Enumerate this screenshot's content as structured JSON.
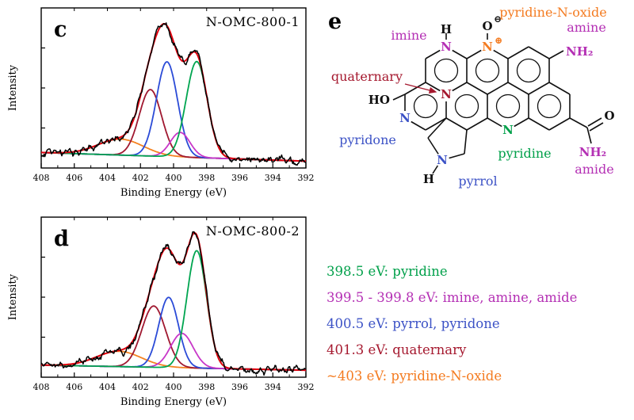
{
  "chart_data": [
    {
      "type": "line",
      "panel_letter": "c",
      "title": "N-OMC-800-1",
      "xlabel": "Binding Energy (eV)",
      "ylabel": "Intensity",
      "xlim": [
        408,
        392
      ],
      "x_ticks": [
        408,
        406,
        404,
        402,
        400,
        398,
        396,
        394,
        392
      ],
      "baseline": {
        "left": 0.1,
        "right": 0.03
      },
      "envelope": {
        "name": "fit-envelope",
        "color": "#e3000f"
      },
      "raw": {
        "name": "raw-data",
        "color": "#000000"
      },
      "peaks": [
        {
          "name": "pyridine-N-oxide",
          "center_eV": 403.2,
          "height": 0.13,
          "fwhm_eV": 3.2,
          "color": "#f58220"
        },
        {
          "name": "quaternary",
          "center_eV": 401.4,
          "height": 0.54,
          "fwhm_eV": 1.6,
          "color": "#a01830"
        },
        {
          "name": "pyrrol, pyridone",
          "center_eV": 400.4,
          "height": 0.77,
          "fwhm_eV": 1.5,
          "color": "#2b4bd7"
        },
        {
          "name": "imine, amine, amide",
          "center_eV": 399.6,
          "height": 0.2,
          "fwhm_eV": 1.4,
          "color": "#c837c8"
        },
        {
          "name": "pyridine",
          "center_eV": 398.6,
          "height": 0.78,
          "fwhm_eV": 1.5,
          "color": "#00a550"
        }
      ]
    },
    {
      "type": "line",
      "panel_letter": "d",
      "title": "N-OMC-800-2",
      "xlabel": "Binding Energy (eV)",
      "ylabel": "Intensity",
      "xlim": [
        408,
        392
      ],
      "x_ticks": [
        408,
        406,
        404,
        402,
        400,
        398,
        396,
        394,
        392
      ],
      "baseline": {
        "left": 0.07,
        "right": 0.03
      },
      "envelope": {
        "name": "fit-envelope",
        "color": "#e3000f"
      },
      "raw": {
        "name": "raw-data",
        "color": "#000000"
      },
      "peaks": [
        {
          "name": "pyridine-N-oxide",
          "center_eV": 403.3,
          "height": 0.12,
          "fwhm_eV": 3.2,
          "color": "#f58220"
        },
        {
          "name": "quaternary",
          "center_eV": 401.2,
          "height": 0.48,
          "fwhm_eV": 1.7,
          "color": "#a01830"
        },
        {
          "name": "pyrrol, pyridone",
          "center_eV": 400.3,
          "height": 0.55,
          "fwhm_eV": 1.4,
          "color": "#2b4bd7"
        },
        {
          "name": "imine, amine, amide",
          "center_eV": 399.5,
          "height": 0.27,
          "fwhm_eV": 1.6,
          "color": "#c837c8"
        },
        {
          "name": "pyridine",
          "center_eV": 398.6,
          "height": 0.92,
          "fwhm_eV": 1.4,
          "color": "#00a550"
        }
      ]
    }
  ],
  "panel_e": {
    "letter": "e",
    "colors": {
      "magenta": "#b430b4",
      "orange": "#f47b20",
      "blue": "#3c52c6",
      "green": "#00a04a",
      "dark_red": "#a5182e",
      "black": "#111111"
    },
    "structure": {
      "pyridine_n_oxide_label": "pyridine-N-oxide",
      "imine_label": "imine",
      "amine_label": "amine",
      "quaternary_label": "quaternary",
      "pyridone_label": "pyridone",
      "pyridine_label": "pyridine",
      "pyrrol_label": "pyrrol",
      "amide_label": "amide",
      "ho": "HO",
      "nh2": "NH₂",
      "n": "N",
      "h": "H",
      "o": "O",
      "plus": "⊕",
      "minus": "⊖"
    },
    "legend": [
      {
        "text": "398.5 eV: pyridine",
        "color": "#00a04a"
      },
      {
        "text": "399.5 - 399.8 eV: imine, amine, amide",
        "color": "#b430b4"
      },
      {
        "text": "400.5 eV: pyrrol, pyridone",
        "color": "#3c52c6"
      },
      {
        "text": "401.3 eV: quaternary",
        "color": "#a5182e"
      },
      {
        "text": "~403 eV: pyridine-N-oxide",
        "color": "#f47b20"
      }
    ]
  }
}
